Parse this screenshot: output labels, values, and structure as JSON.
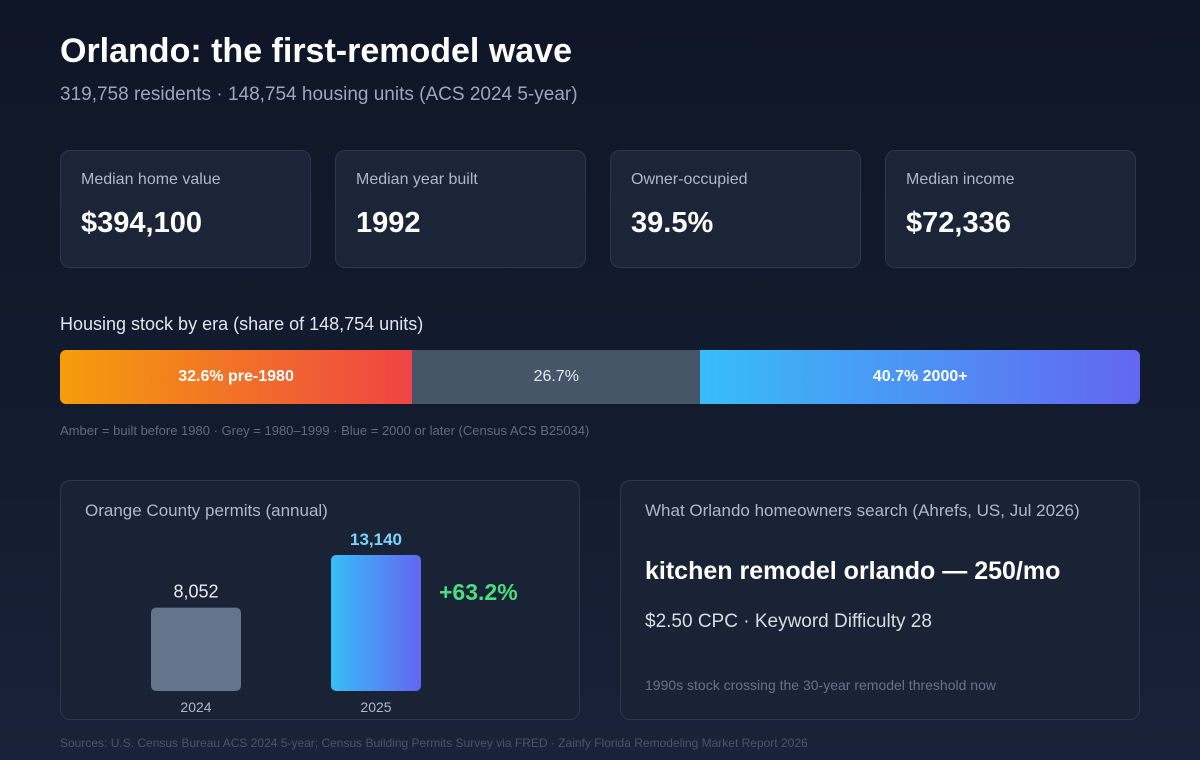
{
  "header": {
    "title": "Orlando: the first-remodel wave",
    "subtitle": "319,758 residents · 148,754 housing units (ACS 2024 5-year)"
  },
  "kpis": [
    {
      "label": "Median home value",
      "value": "$394,100"
    },
    {
      "label": "Median year built",
      "value": "1992"
    },
    {
      "label": "Owner-occupied",
      "value": "39.5%"
    },
    {
      "label": "Median income",
      "value": "$72,336"
    }
  ],
  "era": {
    "title": "Housing stock by era (share of 148,754 units)",
    "segments": [
      {
        "label": "32.6% pre-1980",
        "share": 32.6,
        "color": "#f59e0b"
      },
      {
        "label": "26.7%",
        "share": 26.7,
        "color": "#475569"
      },
      {
        "label": "40.7% 2000+",
        "share": 40.7,
        "color": "#38bdf8"
      }
    ],
    "note": "Amber = built before 1980 · Grey = 1980–1999 · Blue = 2000 or later (Census ACS B25034)"
  },
  "permits": {
    "title": "Orange County permits (annual)",
    "growth": "+63.2%"
  },
  "chart_data": {
    "type": "bar",
    "title": "Orange County permits (annual)",
    "categories": [
      "2024",
      "2025"
    ],
    "values": [
      8052,
      13140
    ],
    "value_labels": [
      "8,052",
      "13,140"
    ],
    "colors": [
      "#64748b",
      "#38bdf8"
    ],
    "ylim": [
      0,
      13140
    ],
    "annotation": "+63.2%"
  },
  "search": {
    "title": "What Orlando homeowners search (Ahrefs, US, Jul 2026)",
    "keyword": "kitchen remodel orlando — 250/mo",
    "meta": "$2.50 CPC · Keyword Difficulty 28",
    "note": "1990s stock crossing the 30-year remodel threshold now"
  },
  "footer": {
    "sources": "Sources: U.S. Census Bureau ACS 2024 5-year; Census Building Permits Survey via FRED · Zainfy Florida Remodeling Market Report 2026"
  }
}
